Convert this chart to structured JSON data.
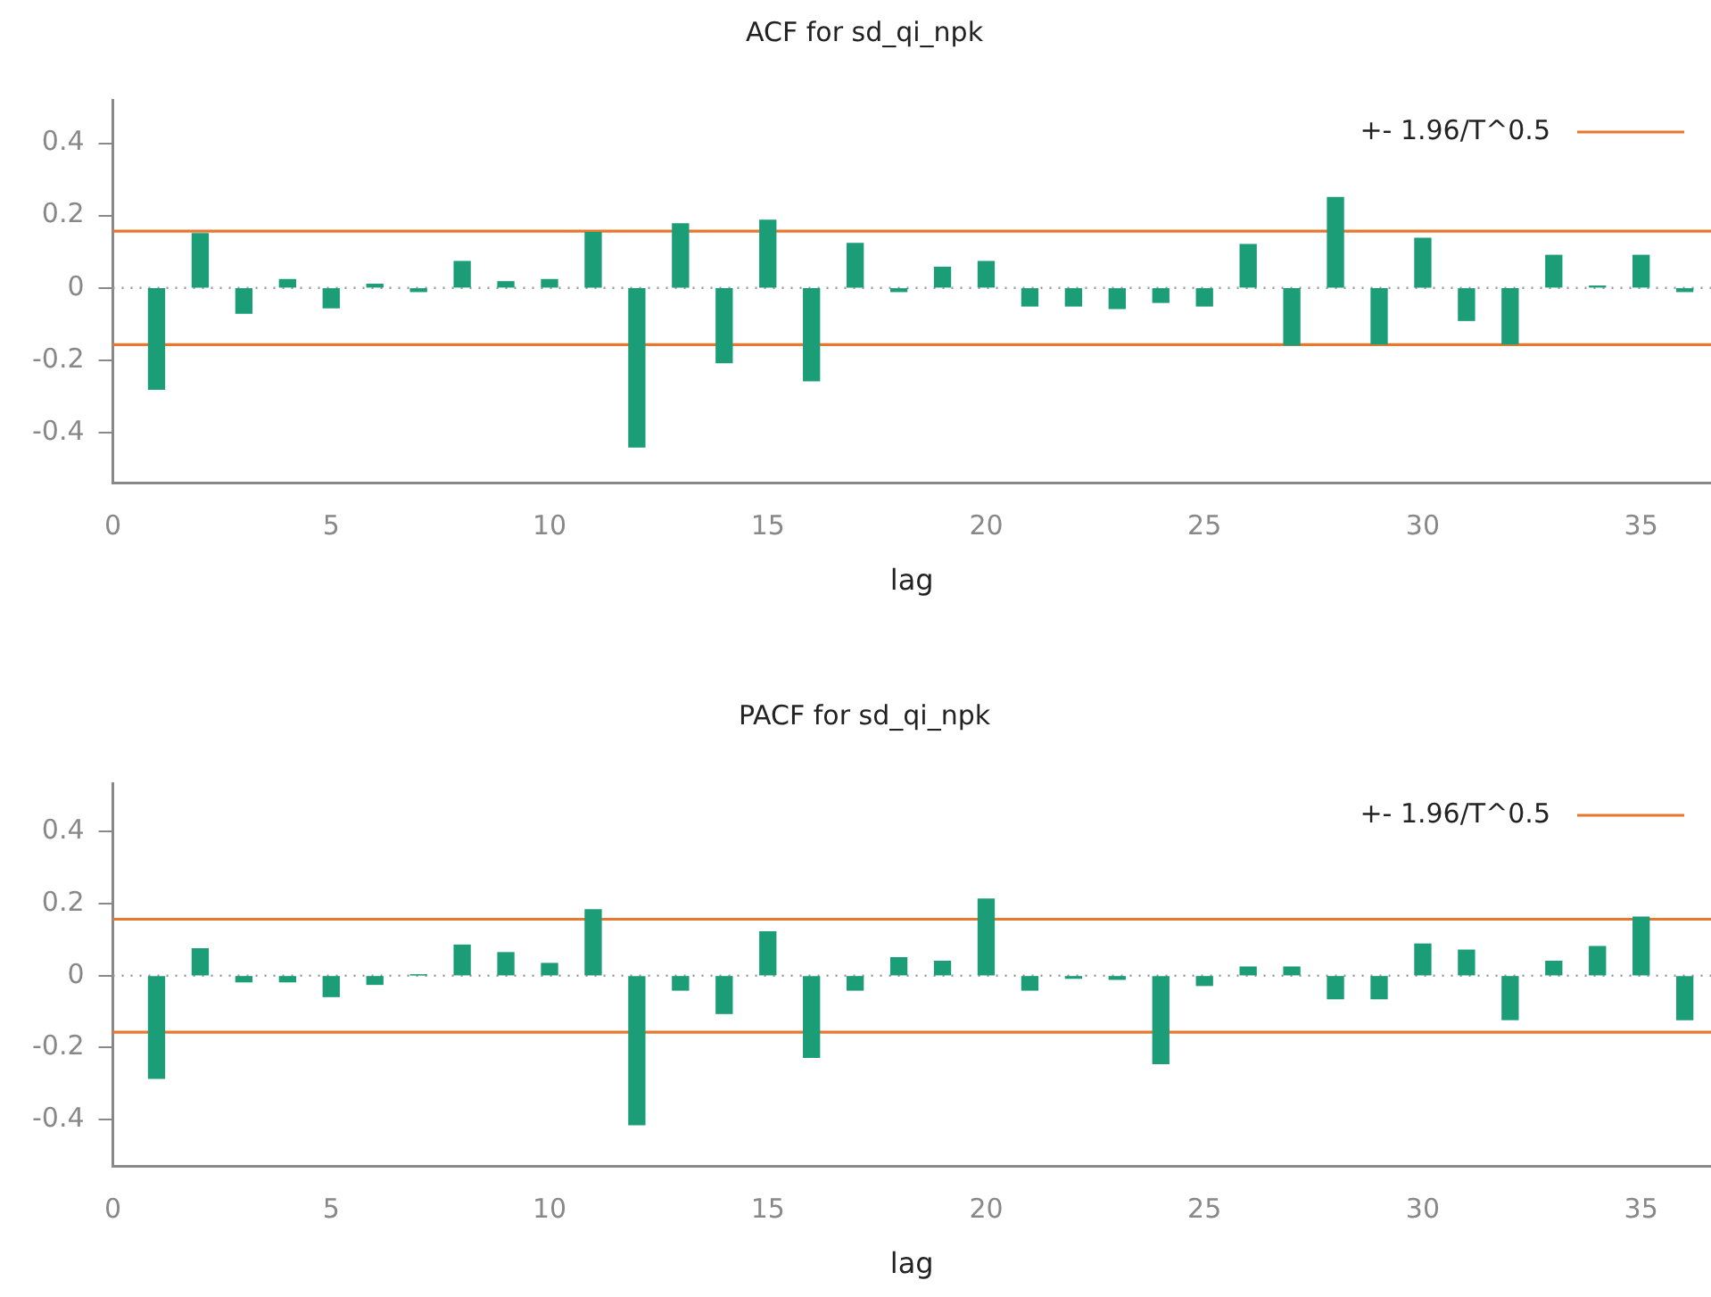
{
  "chart_data": [
    {
      "type": "bar",
      "title": "ACF for sd_qi_npk",
      "xlabel": "lag",
      "x": [
        1,
        2,
        3,
        4,
        5,
        6,
        7,
        8,
        9,
        10,
        11,
        12,
        13,
        14,
        15,
        16,
        17,
        18,
        19,
        20,
        21,
        22,
        23,
        24,
        25,
        26,
        27,
        28,
        29,
        30,
        31,
        32,
        33,
        34,
        35,
        36
      ],
      "values": [
        -0.28,
        0.15,
        -0.07,
        0.023,
        -0.055,
        0.01,
        -0.01,
        0.073,
        0.017,
        0.023,
        0.153,
        -0.44,
        0.177,
        -0.207,
        0.187,
        -0.257,
        0.123,
        -0.01,
        0.057,
        0.073,
        -0.05,
        -0.05,
        -0.057,
        -0.04,
        -0.05,
        0.12,
        -0.158,
        0.25,
        -0.155,
        0.137,
        -0.09,
        -0.155,
        0.09,
        0.005,
        0.09,
        -0.01
      ],
      "color": "#1b9e77",
      "xlim": [
        0,
        36.6
      ],
      "xticks": [
        0,
        5,
        10,
        15,
        20,
        25,
        30,
        35
      ],
      "ylim": [
        -0.54,
        0.52
      ],
      "yticks": [
        -0.4,
        -0.2,
        0,
        0.2,
        0.4
      ],
      "ref_lines": [
        {
          "axis": "y",
          "value": 0.157,
          "label": "+- 1.96/T^0.5",
          "color": "#e8772e"
        },
        {
          "axis": "y",
          "value": -0.157,
          "color": "#e8772e"
        },
        {
          "axis": "y",
          "value": 0,
          "color": "#999999",
          "line_style": "dotted"
        }
      ],
      "legend": "top right",
      "grid": false
    },
    {
      "type": "bar",
      "title": "PACF for sd_qi_npk",
      "xlabel": "lag",
      "x": [
        1,
        2,
        3,
        4,
        5,
        6,
        7,
        8,
        9,
        10,
        11,
        12,
        13,
        14,
        15,
        16,
        17,
        18,
        19,
        20,
        21,
        22,
        23,
        24,
        25,
        26,
        27,
        28,
        29,
        30,
        31,
        32,
        33,
        34,
        35,
        36
      ],
      "values": [
        -0.285,
        0.075,
        -0.017,
        -0.017,
        -0.058,
        -0.024,
        0.002,
        0.085,
        0.064,
        0.034,
        0.183,
        -0.414,
        -0.04,
        -0.105,
        0.122,
        -0.227,
        -0.04,
        0.05,
        0.04,
        0.213,
        -0.04,
        -0.007,
        -0.01,
        -0.244,
        -0.027,
        0.024,
        0.024,
        -0.064,
        -0.064,
        0.088,
        0.071,
        -0.122,
        0.04,
        0.081,
        0.163,
        -0.122
      ],
      "color": "#1b9e77",
      "xlim": [
        0,
        36.6
      ],
      "xticks": [
        0,
        5,
        10,
        15,
        20,
        25,
        30,
        35
      ],
      "ylim": [
        -0.53,
        0.535
      ],
      "yticks": [
        -0.4,
        -0.2,
        0,
        0.2,
        0.4
      ],
      "ref_lines": [
        {
          "axis": "y",
          "value": 0.157,
          "label": "+- 1.96/T^0.5",
          "color": "#e8772e"
        },
        {
          "axis": "y",
          "value": -0.157,
          "color": "#e8772e"
        },
        {
          "axis": "y",
          "value": 0,
          "color": "#999999",
          "line_style": "dotted"
        }
      ],
      "legend": "top right",
      "grid": false
    }
  ]
}
